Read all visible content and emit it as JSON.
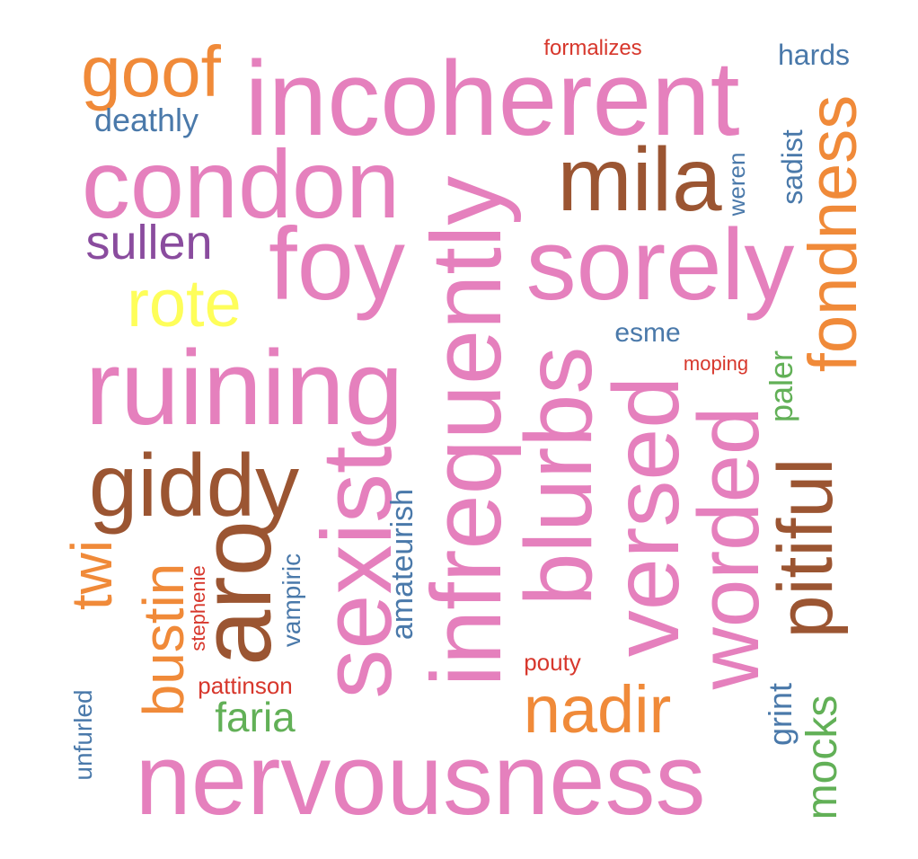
{
  "words": {
    "incoherent": {
      "text": "incoherent",
      "color": "#e580bd"
    },
    "condon": {
      "text": "condon",
      "color": "#e580bd"
    },
    "mila": {
      "text": "mila",
      "color": "#9b5532"
    },
    "goof": {
      "text": "goof",
      "color": "#f08a39"
    },
    "deathly": {
      "text": "deathly",
      "color": "#4a79aa"
    },
    "formalizes": {
      "text": "formalizes",
      "color": "#d7372c"
    },
    "hards": {
      "text": "hards",
      "color": "#4a79aa"
    },
    "sullen": {
      "text": "sullen",
      "color": "#8a4c9e"
    },
    "foy": {
      "text": "foy",
      "color": "#e580bd"
    },
    "sorely": {
      "text": "sorely",
      "color": "#e580bd"
    },
    "rote": {
      "text": "rote",
      "color": "#fefe5a"
    },
    "esme": {
      "text": "esme",
      "color": "#4a79aa"
    },
    "moping": {
      "text": "moping",
      "color": "#d7372c"
    },
    "ruining": {
      "text": "ruining",
      "color": "#e580bd"
    },
    "giddy": {
      "text": "giddy",
      "color": "#9b5532"
    },
    "faria": {
      "text": "faria",
      "color": "#62b057"
    },
    "pattinson": {
      "text": "pattinson",
      "color": "#d7372c"
    },
    "pouty": {
      "text": "pouty",
      "color": "#d7372c"
    },
    "nadir": {
      "text": "nadir",
      "color": "#f08a39"
    },
    "nervousness": {
      "text": "nervousness",
      "color": "#e580bd"
    },
    "infrequently": {
      "text": "infrequently",
      "color": "#e580bd"
    },
    "sexist": {
      "text": "sexist",
      "color": "#e580bd"
    },
    "aro": {
      "text": "aro",
      "color": "#9b5532"
    },
    "blurbs": {
      "text": "blurbs",
      "color": "#e580bd"
    },
    "versed": {
      "text": "versed",
      "color": "#e580bd"
    },
    "worded": {
      "text": "worded",
      "color": "#e580bd"
    },
    "pitiful": {
      "text": "pitiful",
      "color": "#9b5532"
    },
    "fondness": {
      "text": "fondness",
      "color": "#f08a39"
    },
    "sadist": {
      "text": "sadist",
      "color": "#4a79aa"
    },
    "weren": {
      "text": "weren",
      "color": "#4a79aa"
    },
    "paler": {
      "text": "paler",
      "color": "#62b057"
    },
    "twi": {
      "text": "twi",
      "color": "#f08a39"
    },
    "bustin": {
      "text": "bustin",
      "color": "#f08a39"
    },
    "stephenie": {
      "text": "stephenie",
      "color": "#d7372c"
    },
    "vampiric": {
      "text": "vampiric",
      "color": "#4a79aa"
    },
    "amateurish": {
      "text": "amateurish",
      "color": "#4a79aa"
    },
    "unfurled": {
      "text": "unfurled",
      "color": "#4a79aa"
    },
    "grint": {
      "text": "grint",
      "color": "#4a79aa"
    },
    "mocks": {
      "text": "mocks",
      "color": "#62b057"
    }
  }
}
